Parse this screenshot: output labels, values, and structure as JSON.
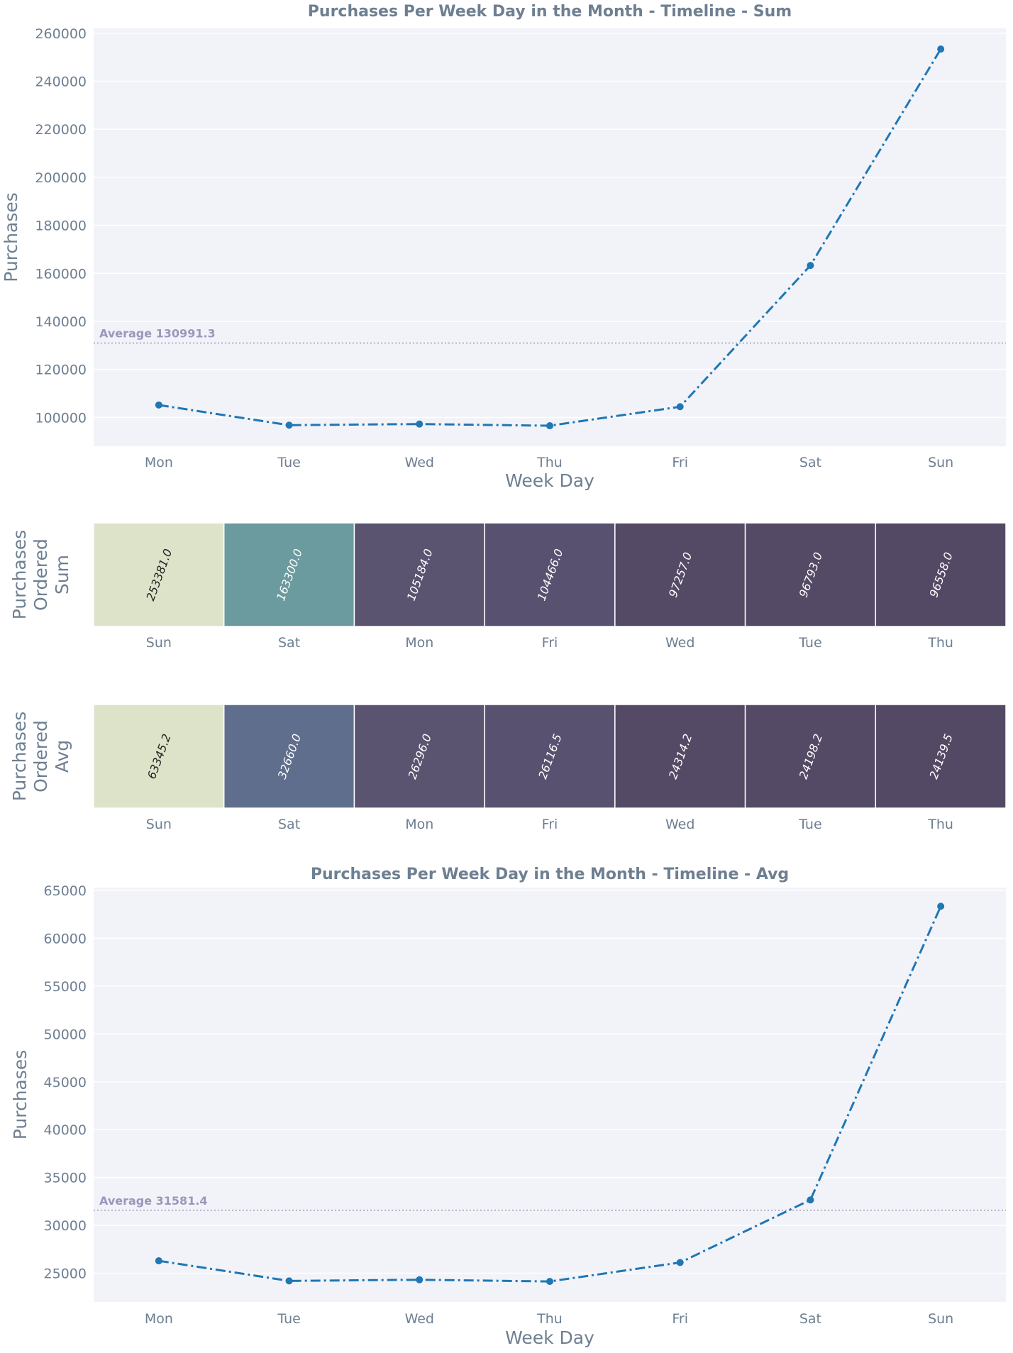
{
  "chart_data": [
    {
      "type": "line",
      "title": "Purchases Per Week Day in the Month - Timeline - Sum",
      "xlabel": "Week Day",
      "ylabel": "Purchases",
      "categories": [
        "Mon",
        "Tue",
        "Wed",
        "Thu",
        "Fri",
        "Sat",
        "Sun"
      ],
      "values": [
        105184,
        96793,
        97257,
        96558,
        104466,
        163300,
        253381
      ],
      "yticks": [
        100000,
        120000,
        140000,
        160000,
        180000,
        200000,
        220000,
        240000,
        260000
      ],
      "ylim": [
        88000,
        262000
      ],
      "grid": true,
      "line_style": "dash-dot",
      "line_color": "#1f77b4",
      "average": {
        "value": 130991.3,
        "label": "Average 130991.3",
        "color": "#9a97bd"
      }
    },
    {
      "type": "heatmap",
      "ylabel": "Purchases\nOrdered\nSum",
      "categories": [
        "Sun",
        "Sat",
        "Mon",
        "Fri",
        "Wed",
        "Tue",
        "Thu"
      ],
      "values": [
        253381.0,
        163300.0,
        105184.0,
        104466.0,
        97257.0,
        96793.0,
        96558.0
      ],
      "labels": [
        "253381.0",
        "163300.0",
        "105184.0",
        "104466.0",
        "97257.0",
        "96793.0",
        "96558.0"
      ],
      "colors": [
        "#dce3c9",
        "#6b9b9e",
        "#5a5471",
        "#595170",
        "#544a66",
        "#544a65",
        "#544964"
      ]
    },
    {
      "type": "heatmap",
      "ylabel": "Purchases\nOrdered\nAvg",
      "categories": [
        "Sun",
        "Sat",
        "Mon",
        "Fri",
        "Wed",
        "Tue",
        "Thu"
      ],
      "values": [
        63345.2,
        32660.0,
        26296.0,
        26116.5,
        24314.2,
        24198.2,
        24139.5
      ],
      "labels": [
        "63345.2",
        "32660.0",
        "26296.0",
        "26116.5",
        "24314.2",
        "24198.2",
        "24139.5"
      ],
      "colors": [
        "#dce3c9",
        "#5f6e8c",
        "#5a5471",
        "#595170",
        "#544a66",
        "#544a65",
        "#544964"
      ]
    },
    {
      "type": "line",
      "title": "Purchases Per Week Day in the Month - Timeline - Avg",
      "xlabel": "Week Day",
      "ylabel": "Purchases",
      "categories": [
        "Mon",
        "Tue",
        "Wed",
        "Thu",
        "Fri",
        "Sat",
        "Sun"
      ],
      "values": [
        26296.0,
        24198.2,
        24314.2,
        24139.5,
        26116.5,
        32660.0,
        63345.2
      ],
      "yticks": [
        25000,
        30000,
        35000,
        40000,
        45000,
        50000,
        55000,
        60000,
        65000
      ],
      "ylim": [
        22000,
        65300
      ],
      "grid": true,
      "line_style": "dash-dot",
      "line_color": "#1f77b4",
      "average": {
        "value": 31581.4,
        "label": "Average 31581.4",
        "color": "#9a97bd"
      }
    }
  ]
}
